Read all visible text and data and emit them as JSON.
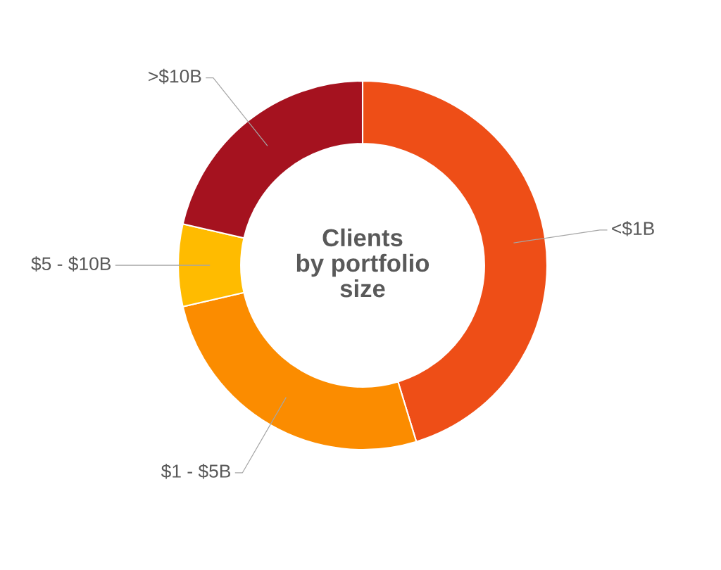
{
  "chart_data": {
    "type": "donut",
    "title": "Clients\nby portfolio\nsize",
    "categories": [
      "<$1B",
      "$1 - $5B",
      "$5 - $10B",
      ">$10B"
    ],
    "values": [
      45.3,
      26.1,
      7.2,
      21.4
    ],
    "colors": [
      "#ee4e17",
      "#fb8c00",
      "#ffbb00",
      "#a5121f"
    ],
    "legend": false
  }
}
